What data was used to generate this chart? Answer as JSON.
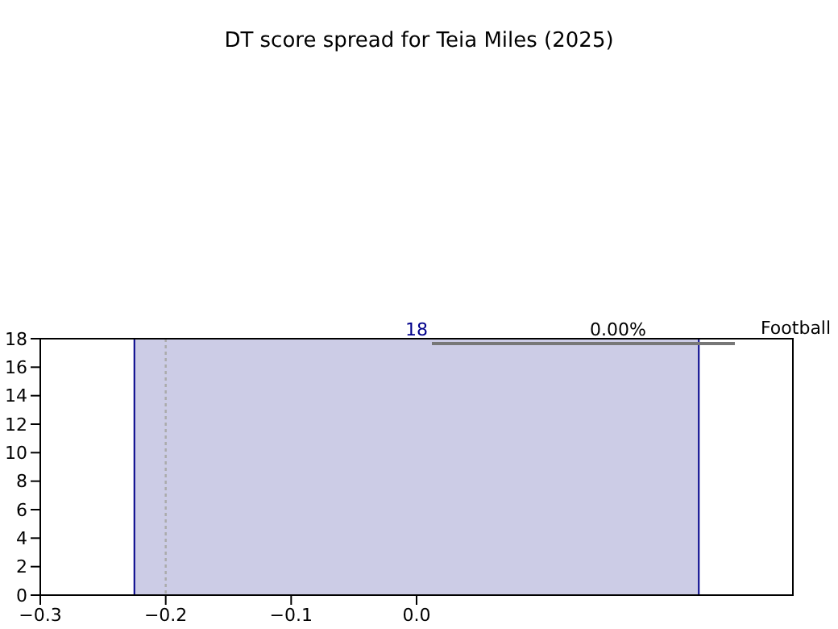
{
  "chart_data": {
    "type": "histogram",
    "title": "DT score spread for Teia Miles (2025)",
    "bins": [
      -0.225,
      0.225
    ],
    "values": [
      18
    ],
    "color": "#ccccE6",
    "data_labels": true,
    "xlim": [
      -0.3,
      0.3
    ],
    "xticks": [
      {
        "value": -0.3,
        "label": "−0.3"
      },
      {
        "value": -0.2,
        "label": "−0.2"
      },
      {
        "value": -0.1,
        "label": "−0.1"
      },
      {
        "value": 0,
        "label": "0.0"
      }
    ],
    "ylim": [
      0,
      18
    ],
    "yticks": [
      0,
      2,
      4,
      6,
      8,
      10,
      12,
      14,
      16,
      18
    ],
    "ref_lines": [
      {
        "axis": "x",
        "value": -0.2,
        "color": "#aaaaaa",
        "line_style": "dotted"
      }
    ],
    "annotations": [
      "0.00%",
      "Football"
    ]
  }
}
